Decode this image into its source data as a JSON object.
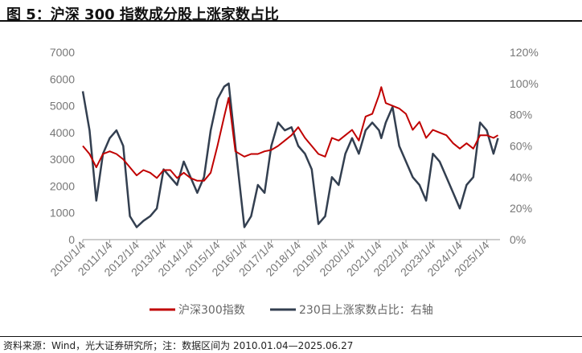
{
  "title": "图 5：沪深 300 指数成分股上涨家数占比",
  "source": "资料来源：Wind，光大证券研究所；注：数据区间为 2010.01.04—2025.06.27",
  "chart_data": {
    "type": "line",
    "title": "图 5：沪深 300 指数成分股上涨家数占比",
    "x_tick_labels": [
      "2010/1/4",
      "2011/1/4",
      "2012/1/4",
      "2013/1/4",
      "2014/1/4",
      "2015/1/4",
      "2016/1/4",
      "2017/1/4",
      "2018/1/4",
      "2019/1/4",
      "2020/1/4",
      "2021/1/4",
      "2022/1/4",
      "2023/1/4",
      "2024/1/4",
      "2025/1/4"
    ],
    "y_left": {
      "ylim": [
        0,
        7000
      ],
      "ticks": [
        "0",
        "1000",
        "2000",
        "3000",
        "4000",
        "5000",
        "6000",
        "7000"
      ]
    },
    "y_right": {
      "ylim": [
        0,
        120
      ],
      "ticks": [
        "0%",
        "20%",
        "40%",
        "60%",
        "80%",
        "100%",
        "120%"
      ]
    },
    "legend_position": "bottom",
    "colors": {
      "csi300": "#c00000",
      "ratio": "#333f50"
    },
    "x": [
      "2010-01",
      "2010-04",
      "2010-07",
      "2010-10",
      "2011-01",
      "2011-04",
      "2011-07",
      "2011-10",
      "2012-01",
      "2012-04",
      "2012-07",
      "2012-10",
      "2013-01",
      "2013-04",
      "2013-07",
      "2013-10",
      "2014-01",
      "2014-04",
      "2014-07",
      "2014-10",
      "2015-01",
      "2015-04",
      "2015-06",
      "2015-09",
      "2016-01",
      "2016-04",
      "2016-07",
      "2016-10",
      "2017-01",
      "2017-04",
      "2017-07",
      "2017-10",
      "2018-01",
      "2018-04",
      "2018-07",
      "2018-10",
      "2019-01",
      "2019-04",
      "2019-07",
      "2019-10",
      "2020-01",
      "2020-04",
      "2020-07",
      "2020-10",
      "2021-01",
      "2021-02",
      "2021-04",
      "2021-07",
      "2021-10",
      "2022-01",
      "2022-04",
      "2022-07",
      "2022-10",
      "2023-01",
      "2023-04",
      "2023-07",
      "2023-10",
      "2024-01",
      "2024-04",
      "2024-07",
      "2024-10",
      "2025-01",
      "2025-04",
      "2025-06"
    ],
    "series": [
      {
        "name": "沪深300指数",
        "axis": "left",
        "values": [
          3500,
          3200,
          2700,
          3200,
          3300,
          3200,
          3000,
          2700,
          2400,
          2600,
          2500,
          2300,
          2600,
          2600,
          2300,
          2500,
          2300,
          2200,
          2200,
          2500,
          3500,
          4600,
          5300,
          3300,
          3100,
          3200,
          3200,
          3300,
          3350,
          3500,
          3700,
          3900,
          4200,
          3800,
          3500,
          3200,
          3100,
          3800,
          3700,
          3900,
          4100,
          3700,
          4600,
          4700,
          5400,
          5700,
          5100,
          5000,
          4900,
          4700,
          4100,
          4400,
          3800,
          4100,
          4000,
          3900,
          3600,
          3400,
          3600,
          3400,
          3900,
          3900,
          3800,
          3900
        ]
      },
      {
        "name": "230日上涨家数占比：右轴",
        "axis": "right",
        "values": [
          95,
          70,
          25,
          55,
          65,
          70,
          60,
          15,
          8,
          12,
          15,
          20,
          45,
          40,
          35,
          50,
          40,
          30,
          40,
          70,
          90,
          98,
          100,
          60,
          8,
          15,
          35,
          30,
          60,
          75,
          70,
          72,
          60,
          55,
          45,
          10,
          15,
          40,
          35,
          55,
          65,
          55,
          70,
          75,
          70,
          65,
          75,
          85,
          60,
          50,
          40,
          35,
          25,
          55,
          50,
          40,
          30,
          20,
          35,
          40,
          75,
          70,
          55,
          65
        ]
      }
    ]
  }
}
